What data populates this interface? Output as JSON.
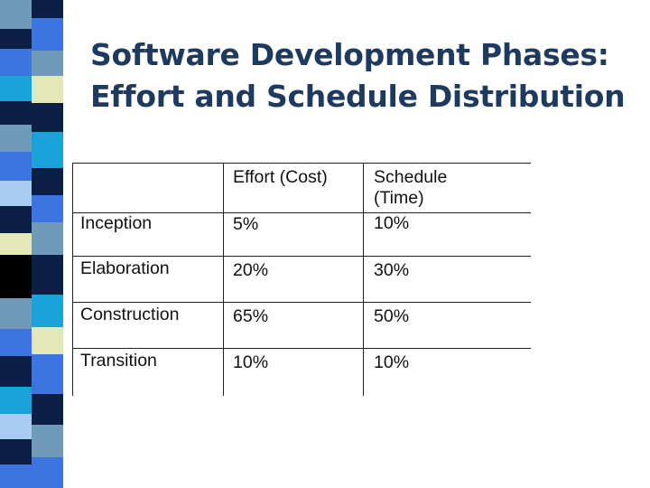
{
  "slide": {
    "title_line1": "Software Development Phases:",
    "title_line2": "Effort and Schedule Distribution"
  },
  "table": {
    "headers": {
      "phase": "",
      "effort": "Effort (Cost)",
      "schedule_line1": "Schedule",
      "schedule_line2": "(Time)"
    },
    "rows": [
      {
        "phase": "Inception",
        "effort": "5%",
        "schedule": "10%"
      },
      {
        "phase": "Elaboration",
        "effort": "20%",
        "schedule": "30%"
      },
      {
        "phase": "Construction",
        "effort": "65%",
        "schedule": "50%"
      },
      {
        "phase": "Transition",
        "effort": "10%",
        "schedule": "10%"
      }
    ]
  },
  "theme": {
    "title_color": "#1f3a5f",
    "strip_colors": [
      "#6f9ab8",
      "#3d74e0",
      "#0b1f45",
      "#1aa3d9",
      "#e4e7b8",
      "#000000",
      "#a9cdf2"
    ]
  }
}
